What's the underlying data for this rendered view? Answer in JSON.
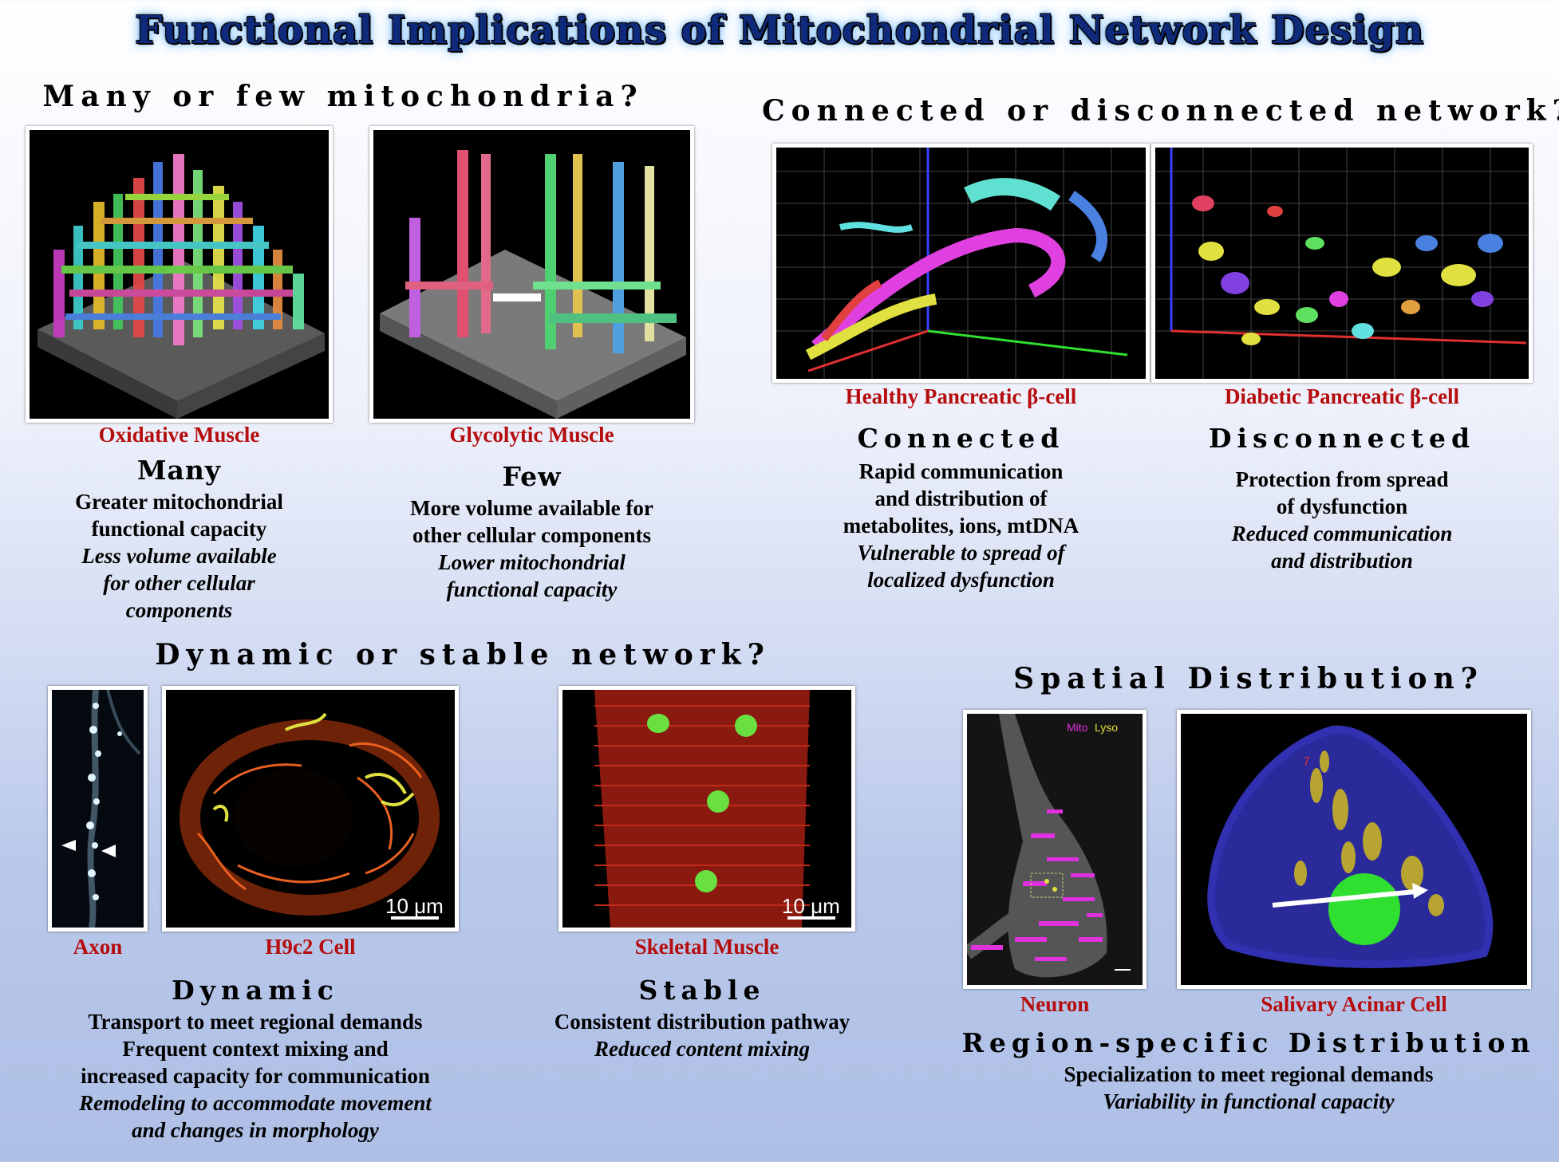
{
  "title": "Functional Implications of Mitochondrial Network Design",
  "sections": {
    "many_few": {
      "heading": "Many or few mitochondria?",
      "oxidative": {
        "caption": "Oxidative Muscle",
        "label": "Many",
        "lines": [
          "Greater mitochondrial",
          "functional capacity"
        ],
        "italic_lines": [
          "Less volume available",
          "for other cellular",
          "components"
        ]
      },
      "glycolytic": {
        "caption": "Glycolytic Muscle",
        "label": "Few",
        "lines": [
          "More volume available for",
          "other cellular components"
        ],
        "italic_lines": [
          "Lower mitochondrial",
          "functional capacity"
        ]
      }
    },
    "connected": {
      "heading": "Connected or disconnected network?",
      "healthy": {
        "caption": "Healthy Pancreatic β-cell",
        "label": "Connected",
        "lines": [
          "Rapid communication",
          "and distribution of",
          "metabolites, ions, mtDNA"
        ],
        "italic_lines": [
          "Vulnerable to spread of",
          "localized dysfunction"
        ]
      },
      "diabetic": {
        "caption": "Diabetic Pancreatic β-cell",
        "label": "Disconnected",
        "lines": [
          "Protection from spread",
          "of dysfunction"
        ],
        "italic_lines": [
          "Reduced communication",
          "and distribution"
        ]
      }
    },
    "dynamic": {
      "heading": "Dynamic or stable network?",
      "axon_caption": "Axon",
      "h9c2_caption": "H9c2 Cell",
      "h9c2_scale": "10 μm",
      "skeletal_caption": "Skeletal Muscle",
      "skeletal_scale": "10 μm",
      "dynamic_block": {
        "label": "Dynamic",
        "lines": [
          "Transport to meet regional demands",
          "Frequent context mixing and",
          "increased capacity for communication"
        ],
        "italic_lines": [
          "Remodeling to accommodate movement",
          "and changes in morphology"
        ]
      },
      "stable_block": {
        "label": "Stable",
        "lines": [
          "Consistent  distribution pathway"
        ],
        "italic_lines": [
          "Reduced content mixing"
        ]
      }
    },
    "spatial": {
      "heading": "Spatial Distribution?",
      "neuron_caption": "Neuron",
      "neuron_legend_mito": "Mito",
      "neuron_legend_lyso": "Lyso",
      "acinar_caption": "Salivary Acinar Cell",
      "region_block": {
        "label": "Region-specific Distribution",
        "lines": [
          "Specialization to meet regional demands"
        ],
        "italic_lines": [
          "Variability in functional capacity"
        ]
      }
    }
  },
  "colors": {
    "title": "#0f2a7a",
    "caption": "#b50d0d",
    "background_top": "#ffffff",
    "background_bottom": "#aebfe6"
  }
}
